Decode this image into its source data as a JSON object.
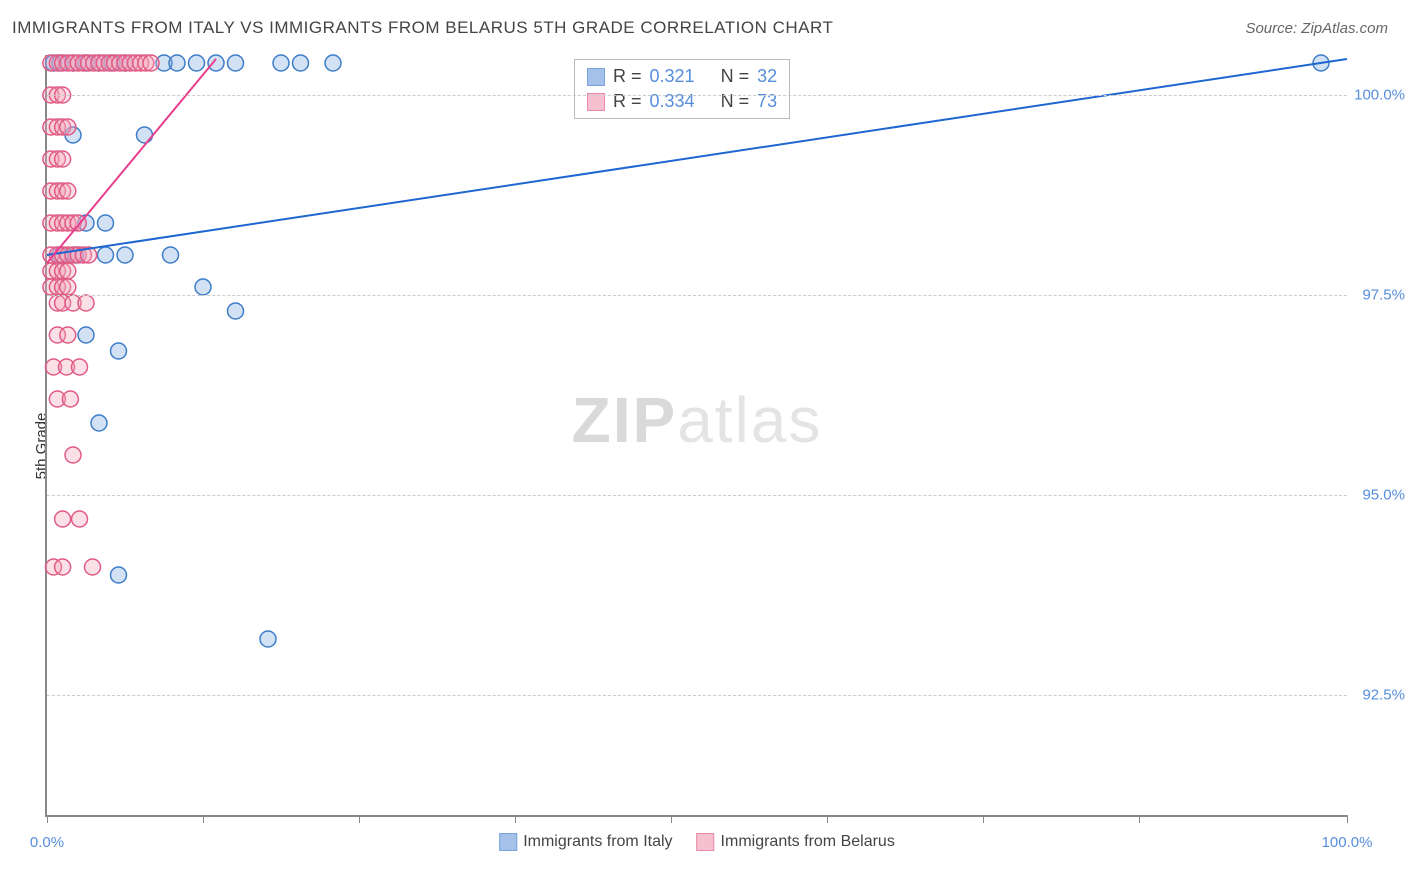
{
  "title": "IMMIGRANTS FROM ITALY VS IMMIGRANTS FROM BELARUS 5TH GRADE CORRELATION CHART",
  "source": "Source: ZipAtlas.com",
  "ylabel": "5th Grade",
  "watermark_bold": "ZIP",
  "watermark_rest": "atlas",
  "chart": {
    "type": "scatter",
    "xlim": [
      0,
      100
    ],
    "ylim": [
      91.0,
      100.5
    ],
    "background_color": "#ffffff",
    "grid_color": "#cccccc",
    "axis_color": "#888888",
    "tick_label_color": "#568edc",
    "ytick_values": [
      92.5,
      95.0,
      97.5,
      100.0
    ],
    "ytick_labels": [
      "92.5%",
      "95.0%",
      "97.5%",
      "100.0%"
    ],
    "xtick_values": [
      0,
      12,
      24,
      36,
      48,
      60,
      72,
      84,
      100
    ],
    "xtick_labels_shown": {
      "0": "0.0%",
      "100": "100.0%"
    },
    "marker_radius": 8,
    "marker_fill_opacity": 0.35,
    "marker_stroke_width": 1.5,
    "series": [
      {
        "name": "Immigrants from Italy",
        "color_fill": "#7fa8e0",
        "color_stroke": "#3d7cc9",
        "R": "0.321",
        "N": "32",
        "trend": {
          "x1": 0,
          "y1": 98.0,
          "x2": 100,
          "y2": 100.45,
          "color": "#1e66d0",
          "width": 2
        },
        "points": [
          [
            0.5,
            100.4
          ],
          [
            1.0,
            100.4
          ],
          [
            2.0,
            100.4
          ],
          [
            3.0,
            100.4
          ],
          [
            4.0,
            100.4
          ],
          [
            5.0,
            100.4
          ],
          [
            6.0,
            100.4
          ],
          [
            9.0,
            100.4
          ],
          [
            10.0,
            100.4
          ],
          [
            11.5,
            100.4
          ],
          [
            13.0,
            100.4
          ],
          [
            14.5,
            100.4
          ],
          [
            18.0,
            100.4
          ],
          [
            19.5,
            100.4
          ],
          [
            22.0,
            100.4
          ],
          [
            98.0,
            100.4
          ],
          [
            2.0,
            99.5
          ],
          [
            7.5,
            99.5
          ],
          [
            3.0,
            98.4
          ],
          [
            4.5,
            98.4
          ],
          [
            1.0,
            98.0
          ],
          [
            2.2,
            98.0
          ],
          [
            4.5,
            98.0
          ],
          [
            6.0,
            98.0
          ],
          [
            9.5,
            98.0
          ],
          [
            12.0,
            97.6
          ],
          [
            3.0,
            97.0
          ],
          [
            14.5,
            97.3
          ],
          [
            5.5,
            96.8
          ],
          [
            4.0,
            95.9
          ],
          [
            5.5,
            94.0
          ],
          [
            17.0,
            93.2
          ]
        ]
      },
      {
        "name": "Immigrants from Belarus",
        "color_fill": "#f4a6bd",
        "color_stroke": "#e05a85",
        "R": "0.334",
        "N": "73",
        "trend": {
          "x1": 0,
          "y1": 97.9,
          "x2": 13,
          "y2": 100.45,
          "color": "#e83e8c",
          "width": 2
        },
        "points": [
          [
            0.3,
            100.4
          ],
          [
            0.8,
            100.4
          ],
          [
            1.2,
            100.4
          ],
          [
            1.6,
            100.4
          ],
          [
            2.0,
            100.4
          ],
          [
            2.4,
            100.4
          ],
          [
            2.8,
            100.4
          ],
          [
            3.2,
            100.4
          ],
          [
            3.6,
            100.4
          ],
          [
            4.0,
            100.4
          ],
          [
            4.4,
            100.4
          ],
          [
            4.8,
            100.4
          ],
          [
            5.2,
            100.4
          ],
          [
            5.6,
            100.4
          ],
          [
            6.0,
            100.4
          ],
          [
            6.4,
            100.4
          ],
          [
            6.8,
            100.4
          ],
          [
            7.2,
            100.4
          ],
          [
            7.6,
            100.4
          ],
          [
            8.0,
            100.4
          ],
          [
            0.3,
            100.0
          ],
          [
            0.8,
            100.0
          ],
          [
            1.2,
            100.0
          ],
          [
            0.3,
            99.6
          ],
          [
            0.8,
            99.6
          ],
          [
            1.2,
            99.6
          ],
          [
            1.6,
            99.6
          ],
          [
            0.3,
            99.2
          ],
          [
            0.8,
            99.2
          ],
          [
            1.2,
            99.2
          ],
          [
            0.3,
            98.8
          ],
          [
            0.8,
            98.8
          ],
          [
            1.2,
            98.8
          ],
          [
            1.6,
            98.8
          ],
          [
            0.3,
            98.4
          ],
          [
            0.8,
            98.4
          ],
          [
            1.2,
            98.4
          ],
          [
            1.6,
            98.4
          ],
          [
            2.0,
            98.4
          ],
          [
            2.4,
            98.4
          ],
          [
            0.3,
            98.0
          ],
          [
            0.8,
            98.0
          ],
          [
            1.2,
            98.0
          ],
          [
            1.6,
            98.0
          ],
          [
            2.0,
            98.0
          ],
          [
            2.4,
            98.0
          ],
          [
            2.8,
            98.0
          ],
          [
            3.2,
            98.0
          ],
          [
            0.3,
            97.8
          ],
          [
            0.8,
            97.8
          ],
          [
            1.2,
            97.8
          ],
          [
            1.6,
            97.8
          ],
          [
            0.3,
            97.6
          ],
          [
            0.8,
            97.6
          ],
          [
            1.2,
            97.6
          ],
          [
            1.6,
            97.6
          ],
          [
            0.8,
            97.4
          ],
          [
            1.2,
            97.4
          ],
          [
            2.0,
            97.4
          ],
          [
            3.0,
            97.4
          ],
          [
            0.8,
            97.0
          ],
          [
            1.6,
            97.0
          ],
          [
            0.5,
            96.6
          ],
          [
            1.5,
            96.6
          ],
          [
            2.5,
            96.6
          ],
          [
            0.8,
            96.2
          ],
          [
            1.8,
            96.2
          ],
          [
            2.0,
            95.5
          ],
          [
            1.2,
            94.7
          ],
          [
            2.5,
            94.7
          ],
          [
            0.5,
            94.1
          ],
          [
            1.2,
            94.1
          ],
          [
            3.5,
            94.1
          ]
        ]
      }
    ]
  },
  "legend": {
    "stat_label_R": "R  =",
    "stat_label_N": "N  ="
  }
}
